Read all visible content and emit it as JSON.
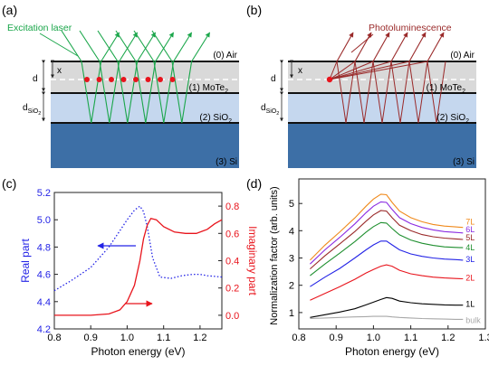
{
  "panels": {
    "a": {
      "tag": "(a)",
      "beam_label": "Excitation laser",
      "beam_color": "#1aa64a",
      "dot_color": "#e8141c",
      "x_label": "x",
      "d_label": "d",
      "dsio2_main": "d",
      "dsio2_sub": "SiO",
      "dsio2_sub2": "2",
      "layers": {
        "air": "(0) Air",
        "mote2": "(1) MoTe",
        "mote2_sub": "2",
        "sio2": "(2) SiO",
        "sio2_sub": "2",
        "si": "(3) Si"
      }
    },
    "b": {
      "tag": "(b)",
      "beam_label": "Photoluminescence",
      "beam_color": "#9a2a2a",
      "dot_color": "#e8141c",
      "x_label": "x",
      "d_label": "d",
      "dsio2_main": "d",
      "dsio2_sub": "SiO",
      "dsio2_sub2": "2",
      "layers": {
        "air": "(0) Air",
        "mote2": "(1) MoTe",
        "mote2_sub": "2",
        "sio2": "(2) SiO",
        "sio2_sub": "2",
        "si": "(3) Si"
      }
    },
    "c": {
      "tag": "(c)"
    },
    "d": {
      "tag": "(d)"
    }
  },
  "colors": {
    "mote2": "#d9d9d9",
    "sio2": "#c5d7ee",
    "si": "#3d6fa6"
  },
  "chart_data": [
    {
      "panel": "c",
      "type": "line",
      "xlabel": "Photon energy (eV)",
      "ylabel": "Real part",
      "ylabel_right": "Imaginary part",
      "xlim": [
        0.8,
        1.26
      ],
      "ylim": [
        4.2,
        5.2
      ],
      "ylim_right": [
        -0.1,
        0.9
      ],
      "x_ticks": [
        "0.8",
        "0.9",
        "1.0",
        "1.1",
        "1.2"
      ],
      "x_tick_values": [
        0.8,
        0.9,
        1.0,
        1.1,
        1.2
      ],
      "y_ticks": [
        "4.2",
        "4.4",
        "4.6",
        "4.8",
        "5.0",
        "5.2"
      ],
      "y_tick_values": [
        4.2,
        4.4,
        4.6,
        4.8,
        5.0,
        5.2
      ],
      "y_ticks_right": [
        "0.0",
        "0.2",
        "0.4",
        "0.6",
        "0.8"
      ],
      "y_tick_values_right": [
        0.0,
        0.2,
        0.4,
        0.6,
        0.8
      ],
      "series": [
        {
          "axis": "left",
          "color": "#2323e6",
          "style": "dotted",
          "x": [
            0.8,
            0.85,
            0.9,
            0.95,
            0.98,
            1.0,
            1.02,
            1.035,
            1.045,
            1.055,
            1.07,
            1.09,
            1.12,
            1.15,
            1.18,
            1.2,
            1.22,
            1.26
          ],
          "y": [
            4.48,
            4.56,
            4.65,
            4.8,
            4.92,
            5.0,
            5.07,
            5.1,
            5.06,
            4.95,
            4.72,
            4.58,
            4.57,
            4.59,
            4.6,
            4.6,
            4.59,
            4.58
          ]
        },
        {
          "axis": "right",
          "color": "#e8141c",
          "style": "solid",
          "x": [
            0.8,
            0.85,
            0.9,
            0.95,
            0.98,
            1.0,
            1.02,
            1.035,
            1.045,
            1.055,
            1.065,
            1.08,
            1.1,
            1.13,
            1.16,
            1.19,
            1.22,
            1.24,
            1.26
          ],
          "y": [
            0.0,
            0.0,
            0.0,
            0.01,
            0.04,
            0.1,
            0.22,
            0.4,
            0.56,
            0.66,
            0.71,
            0.7,
            0.65,
            0.61,
            0.6,
            0.6,
            0.63,
            0.67,
            0.7
          ]
        }
      ]
    },
    {
      "panel": "d",
      "type": "line",
      "xlabel": "Photon energy (eV)",
      "ylabel": "Normalization factor (arb. units)",
      "xlim": [
        0.8,
        1.3
      ],
      "ylim": [
        0.4,
        5.9
      ],
      "x_ticks": [
        "0.8",
        "0.9",
        "1.0",
        "1.1",
        "1.2",
        "1.3"
      ],
      "x_tick_values": [
        0.8,
        0.9,
        1.0,
        1.1,
        1.2,
        1.3
      ],
      "y_ticks": [
        "1",
        "2",
        "3",
        "4",
        "5"
      ],
      "y_tick_values": [
        1,
        2,
        3,
        4,
        5
      ],
      "x": [
        0.83,
        0.87,
        0.91,
        0.95,
        0.98,
        1.0,
        1.02,
        1.035,
        1.05,
        1.07,
        1.1,
        1.13,
        1.16,
        1.19,
        1.22,
        1.24
      ],
      "series": [
        {
          "name": "bulk",
          "color": "#a8a8a8",
          "y": [
            0.78,
            0.8,
            0.82,
            0.84,
            0.85,
            0.86,
            0.86,
            0.86,
            0.84,
            0.82,
            0.8,
            0.78,
            0.77,
            0.76,
            0.75,
            0.75
          ]
        },
        {
          "name": "1L",
          "color": "#000000",
          "y": [
            0.82,
            0.92,
            1.02,
            1.14,
            1.28,
            1.38,
            1.48,
            1.55,
            1.52,
            1.42,
            1.36,
            1.32,
            1.3,
            1.28,
            1.27,
            1.27
          ]
        },
        {
          "name": "2L",
          "color": "#e8141c",
          "y": [
            1.45,
            1.7,
            1.95,
            2.22,
            2.45,
            2.58,
            2.7,
            2.75,
            2.7,
            2.55,
            2.42,
            2.35,
            2.3,
            2.27,
            2.25,
            2.24
          ]
        },
        {
          "name": "3L",
          "color": "#2323e6",
          "y": [
            1.95,
            2.3,
            2.62,
            3.0,
            3.3,
            3.48,
            3.62,
            3.62,
            3.48,
            3.3,
            3.15,
            3.06,
            3.0,
            2.96,
            2.94,
            2.92
          ]
        },
        {
          "name": "4L",
          "color": "#1f8f2f",
          "y": [
            2.35,
            2.78,
            3.18,
            3.6,
            3.95,
            4.15,
            4.3,
            4.28,
            4.08,
            3.85,
            3.66,
            3.54,
            3.46,
            3.41,
            3.39,
            3.38
          ]
        },
        {
          "name": "5L",
          "color": "#9a2a2a",
          "y": [
            2.6,
            3.08,
            3.52,
            3.97,
            4.35,
            4.58,
            4.74,
            4.72,
            4.48,
            4.2,
            4.0,
            3.86,
            3.78,
            3.73,
            3.7,
            3.68
          ]
        },
        {
          "name": "6L",
          "color": "#8a2be2",
          "y": [
            2.78,
            3.3,
            3.76,
            4.25,
            4.66,
            4.9,
            5.06,
            5.04,
            4.78,
            4.48,
            4.26,
            4.12,
            4.03,
            3.97,
            3.94,
            3.92
          ]
        },
        {
          "name": "7L",
          "color": "#f08a1c",
          "y": [
            2.92,
            3.47,
            3.96,
            4.47,
            4.9,
            5.16,
            5.34,
            5.32,
            5.04,
            4.72,
            4.48,
            4.33,
            4.23,
            4.17,
            4.14,
            4.12
          ]
        }
      ]
    }
  ]
}
